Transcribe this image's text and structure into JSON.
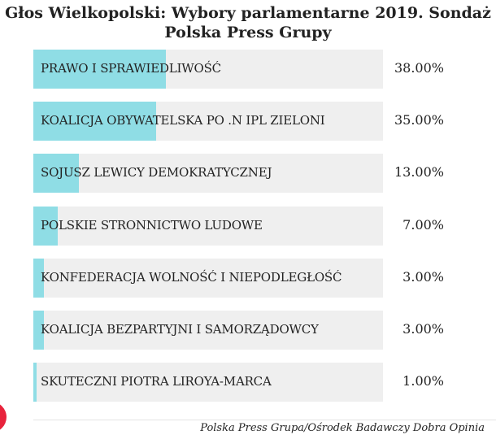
{
  "chart_data": {
    "type": "bar",
    "orientation": "horizontal",
    "title": "Głos Wielkopolski: Wybory parlamentarne 2019. Sondaż Polska Press Grupy",
    "categories": [
      "PRAWO I SPRAWIEDLIWOŚĆ",
      "KOALICJA OBYWATELSKA PO .N IPL ZIELONI",
      "SOJUSZ LEWICY DEMOKRATYCZNEJ",
      "POLSKIE STRONNICTWO LUDOWE",
      "KONFEDERACJA WOLNOŚĆ I NIEPODLEGŁOŚĆ",
      "KOALICJA BEZPARTYJNI I SAMORZĄDOWCY",
      "SKUTECZNI PIOTRA LIROYA-MARCA"
    ],
    "values": [
      38,
      35,
      13,
      7,
      3,
      3,
      1
    ],
    "value_labels": [
      "38.00%",
      "35.00%",
      "13.00%",
      "7.00%",
      "3.00%",
      "3.00%",
      "1.00%"
    ],
    "xlim": [
      0,
      100
    ],
    "grid": false,
    "legend": "none",
    "bar_color": "#8fdde5",
    "track_color": "#efefef"
  },
  "source": "Polska Press Grupa/Ośrodek Badawczy Dobra Opinia",
  "accent_color": "#e8233c"
}
